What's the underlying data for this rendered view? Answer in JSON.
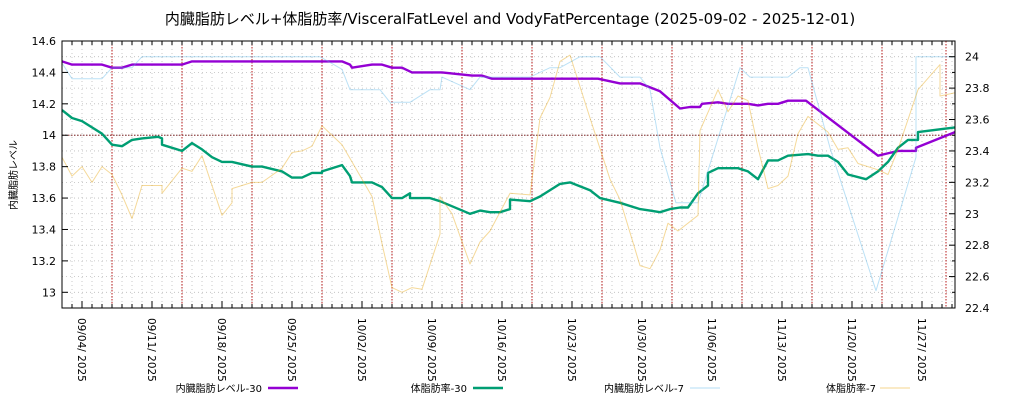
{
  "chart_data": {
    "type": "line",
    "title": "内臓脂肪レベル+体脂肪率/VisceralFatLevel and VodyFatPercentage (2025-09-02 - 2025-12-01)",
    "ylabel": "内臓脂肪レベル",
    "y2label": "",
    "x_start_date": "2025-09-02",
    "x_unit": "days since 2025-09-02",
    "xlim": [
      0,
      89.3
    ],
    "ylim": [
      12.9,
      14.6
    ],
    "y2lim": [
      22.4,
      24.1
    ],
    "yticks": [
      "13",
      "13.2",
      "13.4",
      "13.6",
      "13.8",
      "14",
      "14.2",
      "14.4",
      "14.6"
    ],
    "y2ticks": [
      "22.4",
      "22.6",
      "22.8",
      "23",
      "23.2",
      "23.4",
      "23.6",
      "23.8",
      "24"
    ],
    "xticks": [
      {
        "day": 2,
        "label": "09/04/ 2025"
      },
      {
        "day": 9,
        "label": "09/11/ 2025"
      },
      {
        "day": 16,
        "label": "09/18/ 2025"
      },
      {
        "day": 23,
        "label": "09/25/ 2025"
      },
      {
        "day": 30,
        "label": "10/02/ 2025"
      },
      {
        "day": 37,
        "label": "10/09/ 2025"
      },
      {
        "day": 44,
        "label": "10/16/ 2025"
      },
      {
        "day": 51,
        "label": "10/23/ 2025"
      },
      {
        "day": 58,
        "label": "10/30/ 2025"
      },
      {
        "day": 65,
        "label": "11/06/ 2025"
      },
      {
        "day": 72,
        "label": "11/13/ 2025"
      },
      {
        "day": 79,
        "label": "11/20/ 2025"
      },
      {
        "day": 86,
        "label": "11/27/ 2025"
      }
    ],
    "week_lines_days": [
      5,
      12,
      19,
      26,
      33,
      40,
      47,
      54,
      61,
      68,
      75,
      82,
      88.4
    ],
    "reference_line": 14,
    "grid": true,
    "legend_position": "bottom",
    "series": [
      {
        "name": "内臓脂肪レベル-30",
        "axis": "left",
        "color": "#9400d3",
        "width": 2.4,
        "points": [
          [
            0,
            14.47
          ],
          [
            1,
            14.45
          ],
          [
            4,
            14.45
          ],
          [
            5,
            14.43
          ],
          [
            6,
            14.43
          ],
          [
            7,
            14.45
          ],
          [
            12,
            14.45
          ],
          [
            13,
            14.47
          ],
          [
            28,
            14.47
          ],
          [
            28.8,
            14.45
          ],
          [
            29,
            14.43
          ],
          [
            31,
            14.45
          ],
          [
            32,
            14.45
          ],
          [
            33,
            14.43
          ],
          [
            34,
            14.43
          ],
          [
            35,
            14.4
          ],
          [
            38,
            14.4
          ],
          [
            41,
            14.38
          ],
          [
            42,
            14.38
          ],
          [
            43,
            14.36
          ],
          [
            53.6,
            14.36
          ],
          [
            55.8,
            14.33
          ],
          [
            57.8,
            14.33
          ],
          [
            59.8,
            14.28
          ],
          [
            61.8,
            14.17
          ],
          [
            62.8,
            14.18
          ],
          [
            63.8,
            14.18
          ],
          [
            64,
            14.2
          ],
          [
            65.6,
            14.21
          ],
          [
            66.6,
            14.2
          ],
          [
            68.6,
            14.2
          ],
          [
            69.6,
            14.19
          ],
          [
            70.6,
            14.2
          ],
          [
            71.6,
            14.2
          ],
          [
            72.6,
            14.22
          ],
          [
            74.4,
            14.22
          ],
          [
            81.6,
            13.87
          ],
          [
            83.6,
            13.9
          ],
          [
            85.4,
            13.9
          ],
          [
            85.4,
            13.92
          ],
          [
            89.3,
            14.02
          ]
        ]
      },
      {
        "name": "体脂肪率-30",
        "axis": "left",
        "color": "#009e73",
        "width": 2.4,
        "points": [
          [
            0,
            14.16
          ],
          [
            1,
            14.11
          ],
          [
            2,
            14.09
          ],
          [
            3,
            14.05
          ],
          [
            4,
            14.01
          ],
          [
            5,
            13.94
          ],
          [
            6,
            13.93
          ],
          [
            7,
            13.97
          ],
          [
            8,
            13.98
          ],
          [
            9.6,
            13.99
          ],
          [
            10,
            13.98
          ],
          [
            10,
            13.94
          ],
          [
            12,
            13.9
          ],
          [
            13,
            13.95
          ],
          [
            14,
            13.91
          ],
          [
            15,
            13.86
          ],
          [
            16,
            13.83
          ],
          [
            17,
            13.83
          ],
          [
            19,
            13.8
          ],
          [
            20,
            13.8
          ],
          [
            22,
            13.77
          ],
          [
            23,
            13.73
          ],
          [
            24,
            13.73
          ],
          [
            25,
            13.76
          ],
          [
            26,
            13.76
          ],
          [
            26,
            13.77
          ],
          [
            28,
            13.81
          ],
          [
            28.8,
            13.74
          ],
          [
            29,
            13.7
          ],
          [
            31,
            13.7
          ],
          [
            32,
            13.67
          ],
          [
            33,
            13.6
          ],
          [
            34,
            13.6
          ],
          [
            34.8,
            13.63
          ],
          [
            34.8,
            13.6
          ],
          [
            36.8,
            13.6
          ],
          [
            37.8,
            13.58
          ],
          [
            40.8,
            13.5
          ],
          [
            41.8,
            13.52
          ],
          [
            42.8,
            13.51
          ],
          [
            43.8,
            13.51
          ],
          [
            44.8,
            13.53
          ],
          [
            44.8,
            13.59
          ],
          [
            46.8,
            13.58
          ],
          [
            47.8,
            13.61
          ],
          [
            49.8,
            13.69
          ],
          [
            50.8,
            13.7
          ],
          [
            52.8,
            13.65
          ],
          [
            53.8,
            13.6
          ],
          [
            55.8,
            13.57
          ],
          [
            57.8,
            13.53
          ],
          [
            58.8,
            13.52
          ],
          [
            59.8,
            13.51
          ],
          [
            60.8,
            13.53
          ],
          [
            61.8,
            13.54
          ],
          [
            62.6,
            13.54
          ],
          [
            63.6,
            13.63
          ],
          [
            64.6,
            13.68
          ],
          [
            64.6,
            13.76
          ],
          [
            65.6,
            13.79
          ],
          [
            66.6,
            13.79
          ],
          [
            67.6,
            13.79
          ],
          [
            68.6,
            13.77
          ],
          [
            69.6,
            13.72
          ],
          [
            70.6,
            13.84
          ],
          [
            71.6,
            13.84
          ],
          [
            72.6,
            13.87
          ],
          [
            74.6,
            13.88
          ],
          [
            75.6,
            13.87
          ],
          [
            76.6,
            13.87
          ],
          [
            77.6,
            13.83
          ],
          [
            78.6,
            13.75
          ],
          [
            80.4,
            13.72
          ],
          [
            81.6,
            13.77
          ],
          [
            82.6,
            13.83
          ],
          [
            83.6,
            13.92
          ],
          [
            84.6,
            13.97
          ],
          [
            85.6,
            13.97
          ],
          [
            85.6,
            14.02
          ],
          [
            89.3,
            14.05
          ]
        ]
      },
      {
        "name": "内臓脂肪レベル-7",
        "axis": "left",
        "color": "#56b4e9",
        "width": 1,
        "points": [
          [
            0,
            14.46
          ],
          [
            1,
            14.36
          ],
          [
            4,
            14.36
          ],
          [
            5,
            14.43
          ],
          [
            7,
            14.43
          ],
          [
            8,
            14.5
          ],
          [
            25.8,
            14.5
          ],
          [
            28,
            14.42
          ],
          [
            28.8,
            14.29
          ],
          [
            31.8,
            14.29
          ],
          [
            32.8,
            14.21
          ],
          [
            34.8,
            14.21
          ],
          [
            36.8,
            14.29
          ],
          [
            37.8,
            14.29
          ],
          [
            38,
            14.37
          ],
          [
            40.8,
            14.29
          ],
          [
            41.8,
            14.37
          ],
          [
            46.8,
            14.37
          ],
          [
            48.8,
            14.43
          ],
          [
            49.8,
            14.43
          ],
          [
            51.8,
            14.5
          ],
          [
            53.8,
            14.5
          ],
          [
            55.8,
            14.37
          ],
          [
            57.8,
            14.37
          ],
          [
            58.8,
            14.29
          ],
          [
            59.8,
            13.92
          ],
          [
            61.4,
            13.57
          ],
          [
            63.6,
            13.57
          ],
          [
            67.8,
            14.43
          ],
          [
            68.8,
            14.37
          ],
          [
            72.6,
            14.37
          ],
          [
            73.8,
            14.43
          ],
          [
            74.6,
            14.43
          ],
          [
            76.8,
            13.92
          ],
          [
            81.4,
            13.01
          ],
          [
            85.4,
            13.86
          ],
          [
            85.4,
            14.5
          ],
          [
            89.3,
            14.5
          ]
        ]
      },
      {
        "name": "体脂肪率-7",
        "axis": "right",
        "color": "#e69f00",
        "width": 1,
        "points": [
          [
            0,
            23.36
          ],
          [
            1,
            23.24
          ],
          [
            2,
            23.3
          ],
          [
            3,
            23.2
          ],
          [
            4,
            23.3
          ],
          [
            5,
            23.25
          ],
          [
            6,
            23.12
          ],
          [
            7,
            22.97
          ],
          [
            8,
            23.18
          ],
          [
            10,
            23.18
          ],
          [
            10,
            23.13
          ],
          [
            12,
            23.29
          ],
          [
            13,
            23.27
          ],
          [
            14,
            23.37
          ],
          [
            16,
            22.99
          ],
          [
            17,
            23.07
          ],
          [
            17,
            23.16
          ],
          [
            19,
            23.2
          ],
          [
            20,
            23.2
          ],
          [
            22,
            23.29
          ],
          [
            23,
            23.39
          ],
          [
            24,
            23.4
          ],
          [
            25,
            23.43
          ],
          [
            26,
            23.56
          ],
          [
            28,
            23.44
          ],
          [
            29,
            23.33
          ],
          [
            31,
            23.11
          ],
          [
            32,
            22.81
          ],
          [
            33,
            22.53
          ],
          [
            34,
            22.5
          ],
          [
            35,
            22.53
          ],
          [
            36,
            22.52
          ],
          [
            37.8,
            22.87
          ],
          [
            37.8,
            23.11
          ],
          [
            39,
            23.0
          ],
          [
            40.8,
            22.68
          ],
          [
            41.8,
            22.82
          ],
          [
            42.8,
            22.89
          ],
          [
            44.8,
            23.13
          ],
          [
            46.8,
            23.12
          ],
          [
            47.8,
            23.61
          ],
          [
            48.8,
            23.74
          ],
          [
            49.8,
            23.97
          ],
          [
            50.8,
            24.01
          ],
          [
            52.8,
            23.61
          ],
          [
            54.8,
            23.22
          ],
          [
            55.8,
            23.09
          ],
          [
            57.8,
            22.67
          ],
          [
            58.8,
            22.65
          ],
          [
            59.8,
            22.77
          ],
          [
            60.6,
            22.94
          ],
          [
            61.6,
            22.89
          ],
          [
            63.6,
            22.99
          ],
          [
            63.8,
            23.53
          ],
          [
            65.6,
            23.79
          ],
          [
            66.6,
            23.65
          ],
          [
            67.6,
            23.75
          ],
          [
            68.6,
            23.72
          ],
          [
            69.6,
            23.42
          ],
          [
            70.6,
            23.16
          ],
          [
            71.6,
            23.18
          ],
          [
            72.6,
            23.24
          ],
          [
            73.6,
            23.51
          ],
          [
            74.6,
            23.62
          ],
          [
            76.6,
            23.52
          ],
          [
            77.6,
            23.41
          ],
          [
            78.6,
            23.42
          ],
          [
            79.6,
            23.32
          ],
          [
            81.6,
            23.28
          ],
          [
            82.6,
            23.25
          ],
          [
            83.6,
            23.41
          ],
          [
            85.6,
            23.79
          ],
          [
            87.8,
            23.95
          ],
          [
            87.8,
            23.75
          ],
          [
            89.3,
            23.77
          ]
        ]
      }
    ]
  }
}
